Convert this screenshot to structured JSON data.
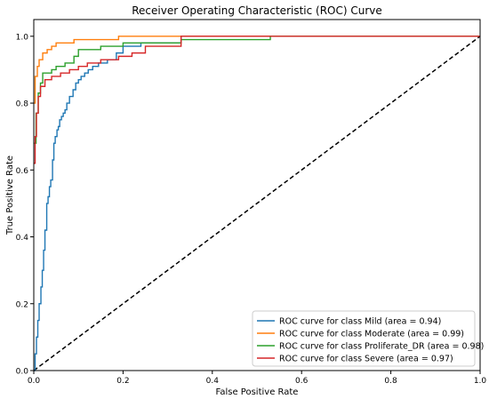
{
  "chart_data": {
    "type": "line",
    "title": "Receiver Operating Characteristic (ROC) Curve",
    "xlabel": "False Positive Rate",
    "ylabel": "True Positive Rate",
    "xlim": [
      0.0,
      1.0
    ],
    "ylim": [
      0.0,
      1.05
    ],
    "xticks": [
      "0.0",
      "0.2",
      "0.4",
      "0.6",
      "0.8",
      "1.0"
    ],
    "yticks": [
      "0.0",
      "0.2",
      "0.4",
      "0.6",
      "0.8",
      "1.0"
    ],
    "grid": false,
    "legend_position": "lower-right",
    "diagonal": {
      "x": [
        0,
        1
      ],
      "y": [
        0,
        1
      ],
      "color": "#000000",
      "style": "dashed"
    },
    "series": [
      {
        "name": "ROC curve for class Mild (area = 0.94)",
        "color": "#1f77b4",
        "x": [
          0,
          0.003,
          0.003,
          0.006,
          0.006,
          0.009,
          0.009,
          0.012,
          0.012,
          0.016,
          0.016,
          0.019,
          0.019,
          0.022,
          0.022,
          0.025,
          0.025,
          0.029,
          0.029,
          0.032,
          0.032,
          0.035,
          0.035,
          0.038,
          0.038,
          0.042,
          0.042,
          0.045,
          0.045,
          0.048,
          0.048,
          0.052,
          0.052,
          0.055,
          0.055,
          0.058,
          0.058,
          0.062,
          0.062,
          0.066,
          0.066,
          0.07,
          0.07,
          0.074,
          0.074,
          0.08,
          0.08,
          0.088,
          0.088,
          0.094,
          0.094,
          0.1,
          0.1,
          0.106,
          0.106,
          0.114,
          0.114,
          0.122,
          0.122,
          0.132,
          0.132,
          0.145,
          0.145,
          0.165,
          0.165,
          0.185,
          0.185,
          0.2,
          0.2,
          0.24,
          0.24,
          0.33,
          0.33,
          1.0
        ],
        "y": [
          0,
          0,
          0.05,
          0.05,
          0.1,
          0.1,
          0.15,
          0.15,
          0.2,
          0.2,
          0.25,
          0.25,
          0.3,
          0.3,
          0.36,
          0.36,
          0.42,
          0.42,
          0.5,
          0.5,
          0.52,
          0.52,
          0.55,
          0.55,
          0.57,
          0.57,
          0.63,
          0.63,
          0.68,
          0.68,
          0.7,
          0.7,
          0.72,
          0.72,
          0.73,
          0.73,
          0.75,
          0.75,
          0.76,
          0.76,
          0.77,
          0.77,
          0.78,
          0.78,
          0.8,
          0.8,
          0.82,
          0.82,
          0.84,
          0.84,
          0.86,
          0.86,
          0.87,
          0.87,
          0.88,
          0.88,
          0.89,
          0.89,
          0.9,
          0.9,
          0.91,
          0.91,
          0.92,
          0.92,
          0.93,
          0.93,
          0.95,
          0.95,
          0.97,
          0.97,
          0.98,
          0.98,
          1.0,
          1.0
        ]
      },
      {
        "name": "ROC curve for class Moderate (area = 0.99)",
        "color": "#ff7f0e",
        "x": [
          0,
          0.003,
          0.003,
          0.008,
          0.008,
          0.012,
          0.012,
          0.02,
          0.02,
          0.03,
          0.03,
          0.04,
          0.04,
          0.05,
          0.05,
          0.06,
          0.06,
          0.09,
          0.09,
          0.19,
          0.19,
          0.44,
          0.44,
          1.0
        ],
        "y": [
          0.8,
          0.8,
          0.88,
          0.88,
          0.91,
          0.91,
          0.93,
          0.93,
          0.95,
          0.95,
          0.96,
          0.96,
          0.97,
          0.97,
          0.98,
          0.98,
          0.98,
          0.98,
          0.99,
          0.99,
          1.0,
          1.0,
          1.0,
          1.0
        ]
      },
      {
        "name": "ROC curve for class Proliferate_DR (area = 0.98)",
        "color": "#2ca02c",
        "x": [
          0,
          0.005,
          0.005,
          0.01,
          0.01,
          0.015,
          0.015,
          0.02,
          0.02,
          0.04,
          0.04,
          0.05,
          0.05,
          0.07,
          0.07,
          0.09,
          0.09,
          0.1,
          0.1,
          0.15,
          0.15,
          0.2,
          0.2,
          0.33,
          0.33,
          0.53,
          0.53,
          1.0
        ],
        "y": [
          0.68,
          0.68,
          0.77,
          0.77,
          0.83,
          0.83,
          0.86,
          0.86,
          0.89,
          0.89,
          0.9,
          0.9,
          0.91,
          0.91,
          0.92,
          0.92,
          0.94,
          0.94,
          0.96,
          0.96,
          0.97,
          0.97,
          0.98,
          0.98,
          0.99,
          0.99,
          1.0,
          1.0
        ]
      },
      {
        "name": "ROC curve for class Severe (area = 0.97)",
        "color": "#d62728",
        "x": [
          0,
          0.003,
          0.003,
          0.006,
          0.006,
          0.01,
          0.01,
          0.015,
          0.015,
          0.025,
          0.025,
          0.04,
          0.04,
          0.06,
          0.06,
          0.08,
          0.08,
          0.1,
          0.1,
          0.12,
          0.12,
          0.15,
          0.15,
          0.19,
          0.19,
          0.22,
          0.22,
          0.25,
          0.25,
          0.33,
          0.33,
          0.53,
          0.53,
          1.0
        ],
        "y": [
          0.62,
          0.62,
          0.7,
          0.7,
          0.77,
          0.77,
          0.82,
          0.82,
          0.85,
          0.85,
          0.87,
          0.87,
          0.88,
          0.88,
          0.89,
          0.89,
          0.9,
          0.9,
          0.91,
          0.91,
          0.92,
          0.92,
          0.93,
          0.93,
          0.94,
          0.94,
          0.95,
          0.95,
          0.97,
          0.97,
          1.0,
          1.0,
          1.0,
          1.0
        ]
      }
    ]
  }
}
